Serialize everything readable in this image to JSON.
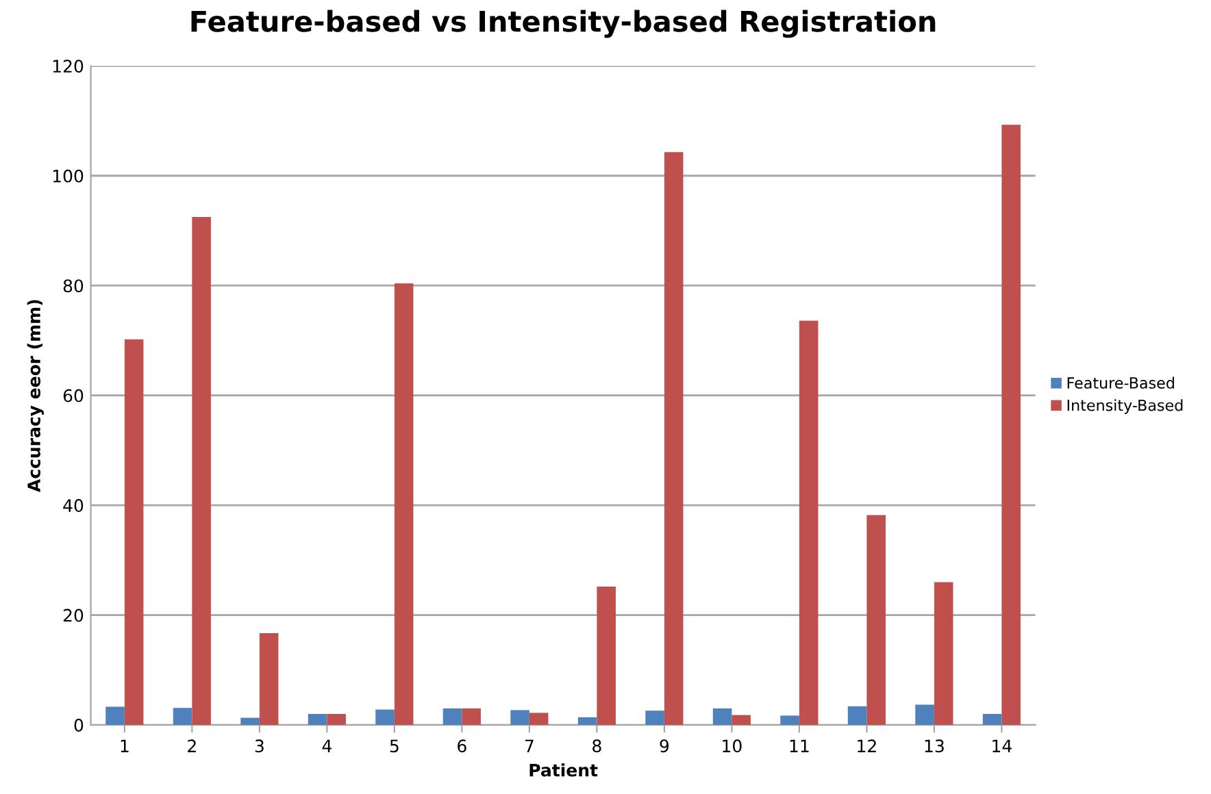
{
  "chart_data": {
    "type": "bar",
    "title": "Feature-based vs Intensity-based Registration",
    "xlabel": "Patient",
    "ylabel": "Accuracy eeor (mm)",
    "categories": [
      "1",
      "2",
      "3",
      "4",
      "5",
      "6",
      "7",
      "8",
      "9",
      "10",
      "11",
      "12",
      "13",
      "14"
    ],
    "series": [
      {
        "name": "Feature-Based",
        "color": "#4f81bd",
        "values": [
          3.3,
          3.1,
          1.3,
          2.0,
          2.8,
          3.0,
          2.7,
          1.4,
          2.6,
          3.0,
          1.7,
          3.4,
          3.7,
          2.0
        ]
      },
      {
        "name": "Intensity-Based",
        "color": "#c0504d",
        "values": [
          70.2,
          92.5,
          16.7,
          2.0,
          80.4,
          3.0,
          2.2,
          25.2,
          104.3,
          1.8,
          73.6,
          38.2,
          26.0,
          109.3
        ]
      }
    ],
    "ylim": [
      0,
      120
    ],
    "yticks": [
      0,
      20,
      40,
      60,
      80,
      100,
      120
    ],
    "grid": "y",
    "legend": "right"
  }
}
